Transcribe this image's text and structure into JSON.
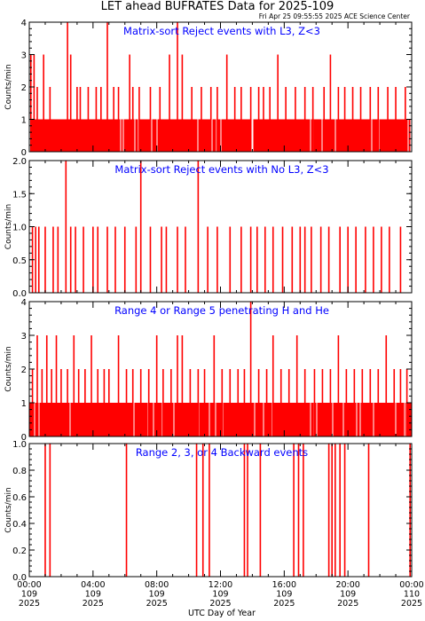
{
  "header": {
    "title": "LET ahead BUFRATES Data for 2025-109",
    "timestamp": "Fri Apr 25 09:55:55 2025 ACE Science Center"
  },
  "xaxis": {
    "label": "UTC Day of Year",
    "ticks": [
      {
        "time": "00:00",
        "doy": "109",
        "year": "2025"
      },
      {
        "time": "04:00",
        "doy": "109",
        "year": "2025"
      },
      {
        "time": "08:00",
        "doy": "109",
        "year": "2025"
      },
      {
        "time": "12:00",
        "doy": "109",
        "year": "2025"
      },
      {
        "time": "16:00",
        "doy": "109",
        "year": "2025"
      },
      {
        "time": "20:00",
        "doy": "109",
        "year": "2025"
      },
      {
        "time": "00:00",
        "doy": "110",
        "year": "2025"
      }
    ]
  },
  "chart_data": [
    {
      "type": "line",
      "title": "Matrix-sort Reject events with L3, Z<3",
      "ylabel": "Counts/min",
      "ylim": [
        0,
        4
      ],
      "xlim_hours": [
        0,
        24
      ],
      "yticks": [
        "0",
        "1",
        "2",
        "3",
        "4"
      ],
      "color": "#ff0000",
      "series": [
        {
          "x": [
            0.1,
            0.3,
            0.5,
            0.9,
            1.3,
            2.4,
            2.6,
            3.0,
            3.2,
            3.7,
            4.2,
            4.5,
            4.9,
            5.3,
            5.6,
            6.3,
            6.5,
            6.9,
            7.6,
            8.2,
            8.8,
            9.3,
            9.6,
            10.2,
            10.8,
            11.4,
            11.8,
            12.4,
            12.9,
            13.3,
            13.9,
            14.4,
            14.7,
            15.1,
            15.6,
            16.1,
            16.7,
            17.3,
            17.8,
            18.5,
            18.9,
            19.4,
            19.8,
            20.3,
            20.8,
            21.4,
            21.9,
            22.5,
            23.0,
            23.6
          ],
          "y": [
            3,
            3,
            2,
            3,
            2,
            4,
            3,
            2,
            2,
            2,
            2,
            2,
            4,
            2,
            2,
            3,
            2,
            2,
            2,
            2,
            3,
            4,
            3,
            2,
            2,
            2,
            2,
            3,
            2,
            2,
            2,
            2,
            2,
            2,
            3,
            2,
            2,
            2,
            2,
            2,
            3,
            2,
            2,
            2,
            2,
            2,
            2,
            2,
            2,
            2
          ]
        }
      ]
    },
    {
      "type": "line",
      "title": "Matrix-sort Reject events with No L3, Z<3",
      "ylabel": "Counts/min",
      "ylim": [
        0,
        2.0
      ],
      "xlim_hours": [
        0,
        24
      ],
      "yticks": [
        "0.0",
        "0.5",
        "1.0",
        "1.5",
        "2.0"
      ],
      "color": "#ff0000",
      "series": [
        {
          "x": [
            0.2,
            0.4,
            0.6,
            1.0,
            1.5,
            1.8,
            2.3,
            2.6,
            2.9,
            3.4,
            4.0,
            4.3,
            4.9,
            5.4,
            6.0,
            6.7,
            7.0,
            7.6,
            8.3,
            8.6,
            9.3,
            9.8,
            10.6,
            11.2,
            11.8,
            12.6,
            13.3,
            13.9,
            14.3,
            14.8,
            15.3,
            15.9,
            16.5,
            17.0,
            17.3,
            17.7,
            18.3,
            18.8,
            19.5,
            20.0,
            20.5,
            21.1,
            21.6,
            22.1,
            22.6,
            23.3
          ],
          "y": [
            1,
            1,
            1,
            1,
            1,
            1,
            2,
            1,
            1,
            1,
            1,
            1,
            1,
            1,
            1,
            1,
            2,
            1,
            1,
            1,
            1,
            1,
            2,
            1,
            1,
            1,
            1,
            1,
            1,
            1,
            1,
            1,
            1,
            1,
            1,
            1,
            1,
            1,
            1,
            1,
            1,
            1,
            1,
            1,
            1,
            1
          ]
        }
      ]
    },
    {
      "type": "line",
      "title": "Range 4 or Range 5 penetrating H and He",
      "ylabel": "Counts/min",
      "ylim": [
        0,
        4
      ],
      "xlim_hours": [
        0,
        24
      ],
      "yticks": [
        "0",
        "1",
        "2",
        "3",
        "4"
      ],
      "color": "#ff0000",
      "series": [
        {
          "x": [
            0.2,
            0.5,
            0.8,
            1.1,
            1.4,
            1.7,
            2.0,
            2.4,
            2.8,
            3.1,
            3.5,
            3.9,
            4.3,
            4.7,
            5.0,
            5.6,
            6.1,
            6.5,
            7.0,
            7.5,
            8.0,
            8.4,
            8.9,
            9.3,
            9.6,
            10.1,
            10.6,
            11.0,
            11.6,
            12.1,
            12.6,
            13.1,
            13.5,
            13.9,
            14.4,
            14.9,
            15.3,
            15.8,
            16.3,
            16.8,
            17.3,
            17.9,
            18.4,
            18.9,
            19.4,
            19.9,
            20.4,
            20.9,
            21.4,
            21.9,
            22.4,
            22.9,
            23.3,
            23.7
          ],
          "y": [
            2,
            3,
            2,
            3,
            2,
            3,
            2,
            2,
            3,
            2,
            2,
            3,
            2,
            2,
            2,
            3,
            2,
            2,
            2,
            2,
            3,
            2,
            2,
            3,
            3,
            2,
            2,
            2,
            3,
            2,
            2,
            2,
            2,
            4,
            2,
            2,
            3,
            2,
            2,
            3,
            2,
            2,
            2,
            2,
            3,
            2,
            2,
            2,
            2,
            2,
            3,
            2,
            2,
            2
          ]
        }
      ]
    },
    {
      "type": "line",
      "title": "Range 2, 3, or 4 Backward events",
      "ylabel": "Counts/min",
      "ylim": [
        0,
        1.0
      ],
      "xlim_hours": [
        0,
        24
      ],
      "yticks": [
        "0.0",
        "0.2",
        "0.4",
        "0.6",
        "0.8",
        "1.0"
      ],
      "color": "#ff0000",
      "series": [
        {
          "x": [
            1.0,
            1.3,
            6.1,
            10.5,
            10.9,
            11.3,
            13.5,
            13.7,
            14.5,
            16.6,
            16.9,
            17.2,
            18.8,
            19.0,
            19.2,
            19.5,
            19.8,
            21.3,
            23.9
          ],
          "y": [
            1,
            1,
            1,
            1,
            1,
            1,
            1,
            1,
            1,
            1,
            1,
            1,
            1,
            1,
            1,
            1,
            1,
            1,
            1
          ]
        }
      ]
    }
  ]
}
